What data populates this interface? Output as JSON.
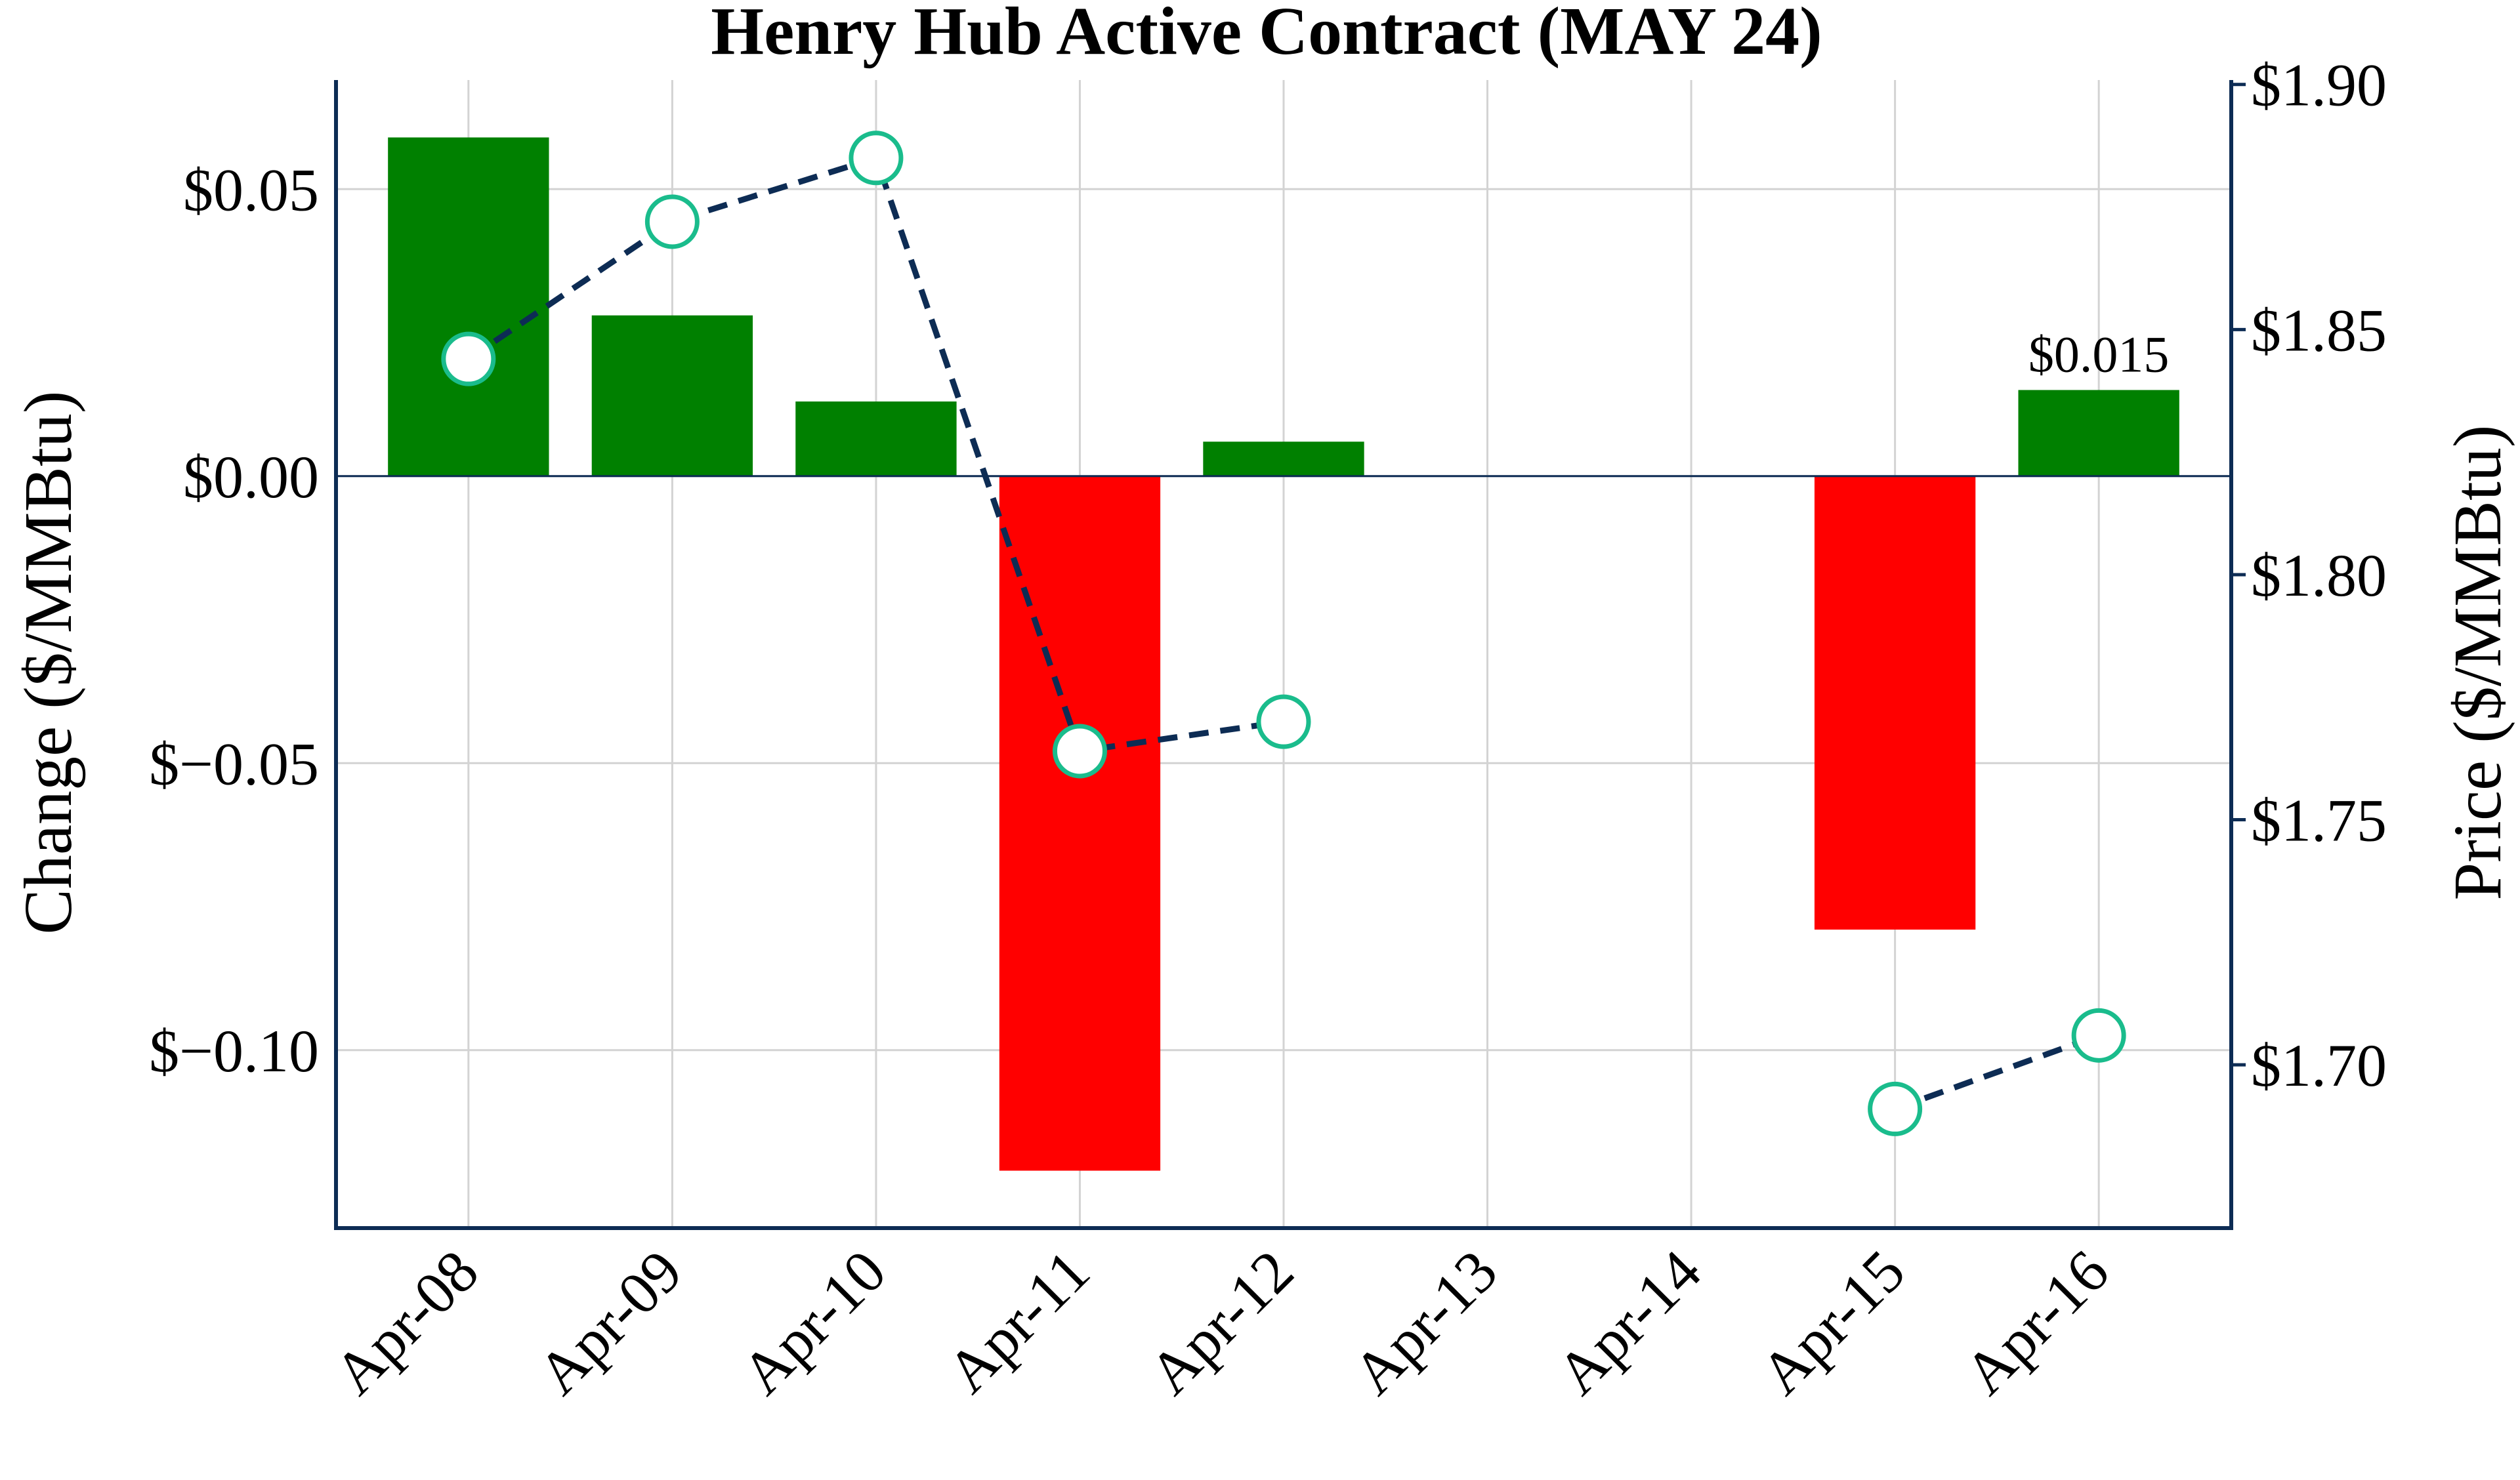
{
  "chart_data": {
    "type": "bar",
    "title": "Henry Hub Active Contract (MAY 24)",
    "categories": [
      "Apr-08",
      "Apr-09",
      "Apr-10",
      "Apr-11",
      "Apr-12",
      "Apr-13",
      "Apr-14",
      "Apr-15",
      "Apr-16"
    ],
    "series": [
      {
        "kind": "bar",
        "axis": "left",
        "values": [
          0.059,
          0.028,
          0.013,
          -0.121,
          0.006,
          null,
          null,
          -0.079,
          0.015
        ]
      },
      {
        "kind": "line",
        "axis": "right",
        "values": [
          1.844,
          1.872,
          1.885,
          1.764,
          1.77,
          null,
          null,
          1.691,
          1.706
        ]
      }
    ],
    "left_axis": {
      "label": "Change ($/MMBtu)",
      "ylim": [
        -0.131,
        0.069
      ],
      "ticks": [
        0.05,
        0.0,
        -0.05,
        -0.1
      ],
      "tick_labels": [
        "$0.05",
        "$0.00",
        "$−0.05",
        "$−0.10"
      ]
    },
    "right_axis": {
      "label": "Price ($/MMBtu)",
      "ylim": [
        1.6667,
        1.9009
      ],
      "ticks": [
        1.9,
        1.85,
        1.8,
        1.75,
        1.7
      ],
      "tick_labels": [
        "$1.90",
        "$1.85",
        "$1.80",
        "$1.75",
        "$1.70"
      ]
    },
    "annotations": [
      {
        "category": "Apr-16",
        "text": "$0.015"
      }
    ],
    "colors": {
      "positive_bar": "#008000",
      "negative_bar": "#ff0000",
      "line": "#0d2c54",
      "marker_edge": "#1abc8c",
      "marker_fill": "#ffffff",
      "axis": "#0d2c54",
      "grid": "#d3d3d3"
    },
    "grid": true,
    "line_style": "dashed"
  }
}
